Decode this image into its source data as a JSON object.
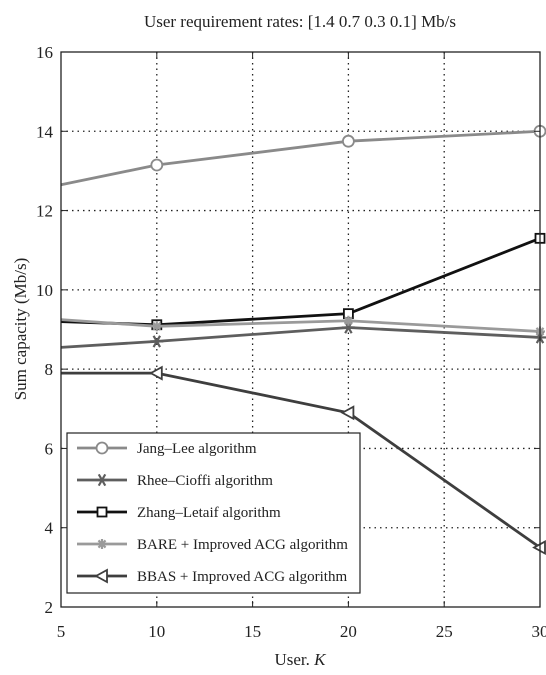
{
  "chart_data": {
    "type": "line",
    "title": "User requirement rates: [1.4 0.7 0.3 0.1] Mb/s",
    "xlabel": "User. K",
    "ylabel": "Sum capacity (Mb/s)",
    "xlim": [
      5,
      30
    ],
    "ylim": [
      2,
      16
    ],
    "x_ticks": [
      5,
      10,
      15,
      20,
      25,
      30
    ],
    "y_ticks": [
      2,
      4,
      6,
      8,
      10,
      12,
      14,
      16
    ],
    "grid": true,
    "legend_position": "bottom-left",
    "series": [
      {
        "name": "Jang–Lee algorithm",
        "marker": "circle",
        "color": "#8a8a8a",
        "x": [
          5,
          10,
          20,
          30
        ],
        "y": [
          12.65,
          13.15,
          13.75,
          14.0
        ]
      },
      {
        "name": "Rhee–Cioffi algorithm",
        "marker": "star",
        "color": "#5e5e5e",
        "x": [
          5,
          10,
          20,
          30
        ],
        "y": [
          8.55,
          8.7,
          9.05,
          8.8
        ]
      },
      {
        "name": "Zhang–Letaif algorithm",
        "marker": "square",
        "color": "#111111",
        "x": [
          5,
          10,
          20,
          30
        ],
        "y": [
          9.2,
          9.12,
          9.4,
          11.3
        ]
      },
      {
        "name": "BARE + Improved ACG algorithm",
        "marker": "asterisk",
        "color": "#9a9a9a",
        "x": [
          5,
          10,
          20,
          30
        ],
        "y": [
          9.25,
          9.08,
          9.22,
          8.95
        ]
      },
      {
        "name": "BBAS + Improved ACG algorithm",
        "marker": "triangle-left",
        "color": "#3e3e3e",
        "x": [
          5,
          10,
          20,
          30
        ],
        "y": [
          7.9,
          7.9,
          6.9,
          3.5
        ]
      }
    ]
  }
}
